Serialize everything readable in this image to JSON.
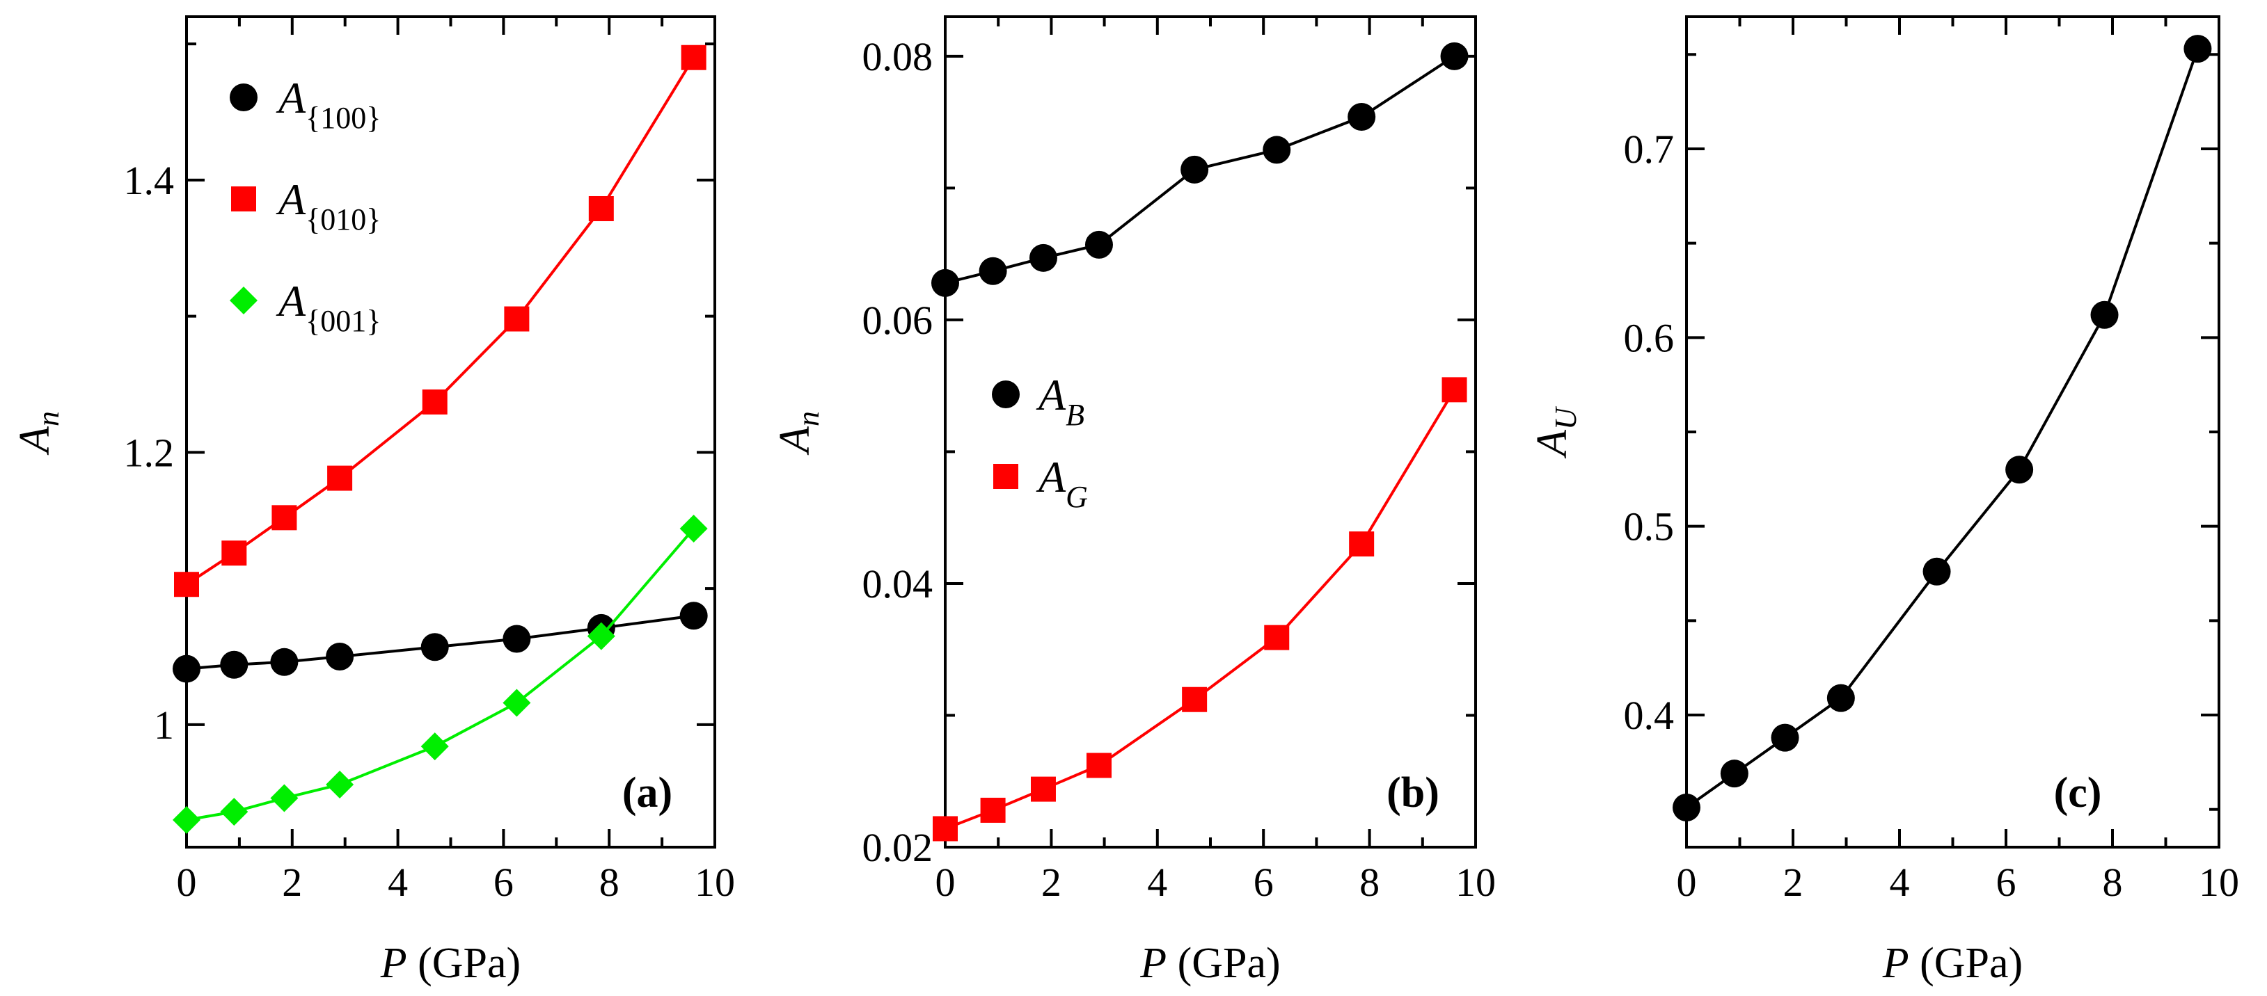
{
  "chart_data": [
    {
      "panel": "(a)",
      "type": "line",
      "xlabel_var": "P",
      "xlabel_unit": " (GPa)",
      "ylabel_var": "A",
      "ylabel_sub": "n",
      "xlim": [
        0,
        10
      ],
      "ylim": [
        0.91,
        1.52
      ],
      "xticks": [
        0,
        2,
        4,
        6,
        8,
        10
      ],
      "xtick_labels": [
        "0",
        "2",
        "4",
        "6",
        "8",
        "10"
      ],
      "yticks": [
        1.0,
        1.2,
        1.4
      ],
      "ytick_labels": [
        "1",
        "1.2",
        "1.4"
      ],
      "x": [
        0,
        0.9,
        1.85,
        2.9,
        4.7,
        6.25,
        7.85,
        9.6
      ],
      "legend_position": "top-left",
      "series": [
        {
          "name": "A{100}",
          "label_main": "A",
          "label_sub": "{100}",
          "marker": "circle",
          "color": "#000000",
          "values": [
            1.041,
            1.044,
            1.046,
            1.05,
            1.057,
            1.063,
            1.071,
            1.08
          ]
        },
        {
          "name": "A{010}",
          "label_main": "A",
          "label_sub": "{010}",
          "marker": "square",
          "color": "#ff0000",
          "values": [
            1.103,
            1.126,
            1.152,
            1.181,
            1.237,
            1.298,
            1.379,
            1.49
          ]
        },
        {
          "name": "A{001}",
          "label_main": "A",
          "label_sub": "{001}",
          "marker": "diamond",
          "color": "#00ee00",
          "values": [
            0.93,
            0.936,
            0.946,
            0.956,
            0.984,
            1.016,
            1.065,
            1.144
          ]
        }
      ]
    },
    {
      "panel": "(b)",
      "type": "line",
      "xlabel_var": "P",
      "xlabel_unit": " (GPa)",
      "ylabel_var": "A",
      "ylabel_sub": "n",
      "xlim": [
        0,
        10
      ],
      "ylim": [
        0.02,
        0.083
      ],
      "xticks": [
        0,
        2,
        4,
        6,
        8,
        10
      ],
      "xtick_labels": [
        "0",
        "2",
        "4",
        "6",
        "8",
        "10"
      ],
      "yticks": [
        0.02,
        0.04,
        0.06,
        0.08
      ],
      "ytick_labels": [
        "0.02",
        "0.04",
        "0.06",
        "0.08"
      ],
      "x": [
        0,
        0.9,
        1.85,
        2.9,
        4.7,
        6.25,
        7.85,
        9.6
      ],
      "legend_position": "middle-left",
      "series": [
        {
          "name": "AB",
          "label_main": "A",
          "label_sub": "B",
          "marker": "circle",
          "color": "#000000",
          "values": [
            0.0628,
            0.0637,
            0.0647,
            0.0657,
            0.0714,
            0.0729,
            0.0754,
            0.08
          ]
        },
        {
          "name": "AG",
          "label_main": "A",
          "label_sub": "G",
          "marker": "square",
          "color": "#ff0000",
          "values": [
            0.0214,
            0.0228,
            0.0244,
            0.0262,
            0.0312,
            0.0359,
            0.043,
            0.0547
          ]
        }
      ]
    },
    {
      "panel": "(c)",
      "type": "line",
      "xlabel_var": "P",
      "xlabel_unit": " (GPa)",
      "ylabel_var": "A",
      "ylabel_sub": "U",
      "xlim": [
        0,
        10
      ],
      "ylim": [
        0.33,
        0.77
      ],
      "xticks": [
        0,
        2,
        4,
        6,
        8,
        10
      ],
      "xtick_labels": [
        "0",
        "2",
        "4",
        "6",
        "8",
        "10"
      ],
      "yticks": [
        0.4,
        0.5,
        0.6,
        0.7
      ],
      "ytick_labels": [
        "0.4",
        "0.5",
        "0.6",
        "0.7"
      ],
      "x": [
        0,
        0.9,
        1.85,
        2.9,
        4.7,
        6.25,
        7.85,
        9.6
      ],
      "series": [
        {
          "name": "AU",
          "marker": "circle",
          "color": "#000000",
          "values": [
            0.351,
            0.369,
            0.388,
            0.409,
            0.476,
            0.53,
            0.612,
            0.753
          ]
        }
      ]
    }
  ]
}
